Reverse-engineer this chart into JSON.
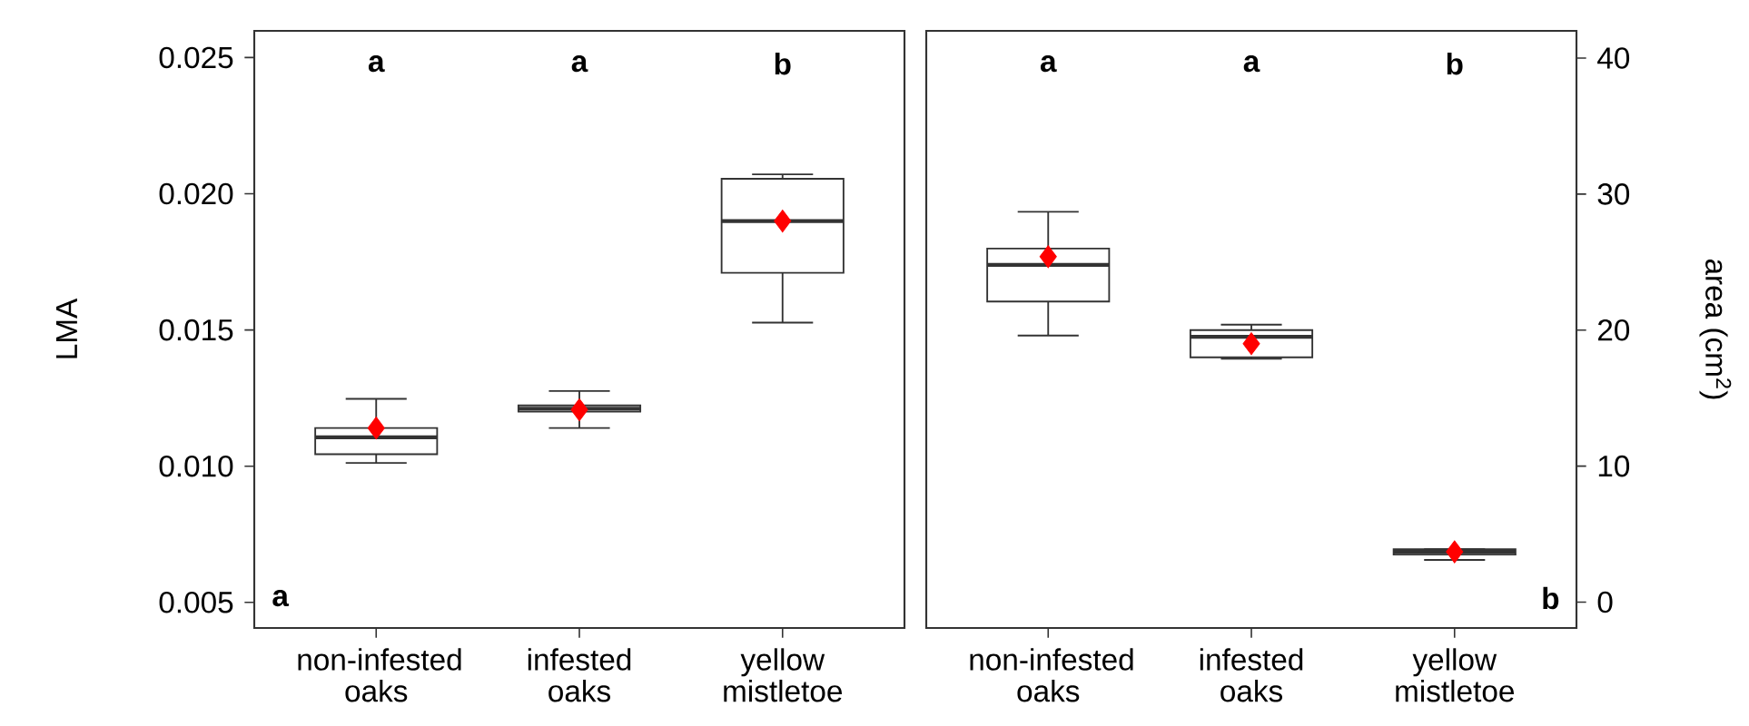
{
  "chart_data": [
    {
      "type": "box",
      "ylabel": "LMA",
      "categories": [
        "non-infested oaks",
        "infested oaks",
        "yellow mistletoe"
      ],
      "ylim": [
        0.00406,
        0.02598
      ],
      "yticks": [
        0.005,
        {
          "value": 0.01,
          "label": "0.010"
        },
        0.015,
        {
          "value": 0.02,
          "label": "0.020"
        },
        0.025
      ],
      "series": [
        {
          "color": "#333333",
          "boxes": [
            {
              "low": 0.01012,
              "q1": 0.01044,
              "median": 0.01106,
              "q3": 0.0114,
              "high": 0.01247,
              "mean": 0.0114
            },
            {
              "low": 0.0114,
              "q1": 0.012,
              "median": 0.01211,
              "q3": 0.01223,
              "high": 0.01276,
              "mean": 0.01207
            },
            {
              "low": 0.01527,
              "q1": 0.0171,
              "median": 0.019,
              "q3": 0.02055,
              "high": 0.02071,
              "mean": 0.019
            }
          ]
        }
      ],
      "annotations": [
        "a",
        "a",
        "b",
        "a"
      ]
    },
    {
      "type": "box",
      "y2label": "area (cm$^{2}$)",
      "categories": [
        "non-infested oaks",
        "infested oaks",
        "yellow mistletoe"
      ],
      "y2lim": [
        -1.9,
        42.0
      ],
      "y2ticks": [
        0,
        10,
        20,
        30,
        40
      ],
      "series": [
        {
          "axis": "y2",
          "color": "#333333",
          "boxes": [
            {
              "low": 19.6,
              "q1": 22.1,
              "median": 24.8,
              "q3": 26.0,
              "high": 28.7,
              "mean": 25.4
            },
            {
              "low": 17.9,
              "q1": 18.0,
              "median": 19.5,
              "q3": 20.0,
              "high": 20.4,
              "mean": 19.0
            },
            {
              "low": 3.1,
              "q1": 3.5,
              "median": 3.7,
              "q3": 3.9,
              "high": 3.9,
              "mean": 3.7
            }
          ]
        }
      ],
      "annotations": [
        "a",
        "a",
        "b",
        "b"
      ]
    }
  ]
}
